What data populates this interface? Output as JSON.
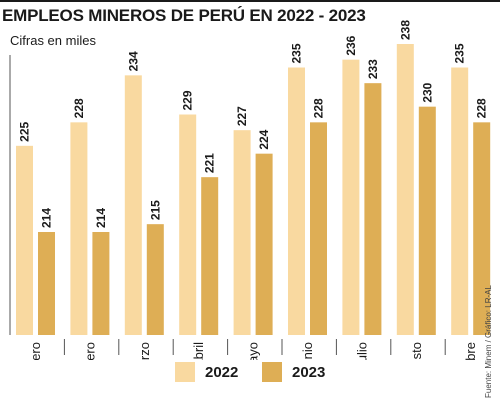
{
  "title": "EMPLEOS MINEROS DE PERÚ EN 2022 - 2023",
  "subtitle": "Cifras en miles",
  "source": "Fuente: Minem / Gráfico: LR-AL",
  "colors": {
    "s2022": "#f9d9a0",
    "s2023": "#deae55",
    "text": "#1a1a1a",
    "axis": "#555555"
  },
  "chart_data": {
    "type": "bar",
    "title": "EMPLEOS MINEROS DE PERÚ EN 2022 - 2023",
    "subtitle": "Cifras en miles",
    "categories": [
      "Enero",
      "Febrero",
      "Marzo",
      "Abril",
      "Mayo",
      "Junio",
      "Julio",
      "Agosto",
      "Septiembre"
    ],
    "series": [
      {
        "name": "2022",
        "values": [
          225,
          228,
          234,
          229,
          227,
          235,
          236,
          238,
          235
        ]
      },
      {
        "name": "2023",
        "values": [
          214,
          214,
          215,
          221,
          224,
          228,
          233,
          230,
          228
        ]
      }
    ],
    "legend": "bottom",
    "grid": false
  }
}
